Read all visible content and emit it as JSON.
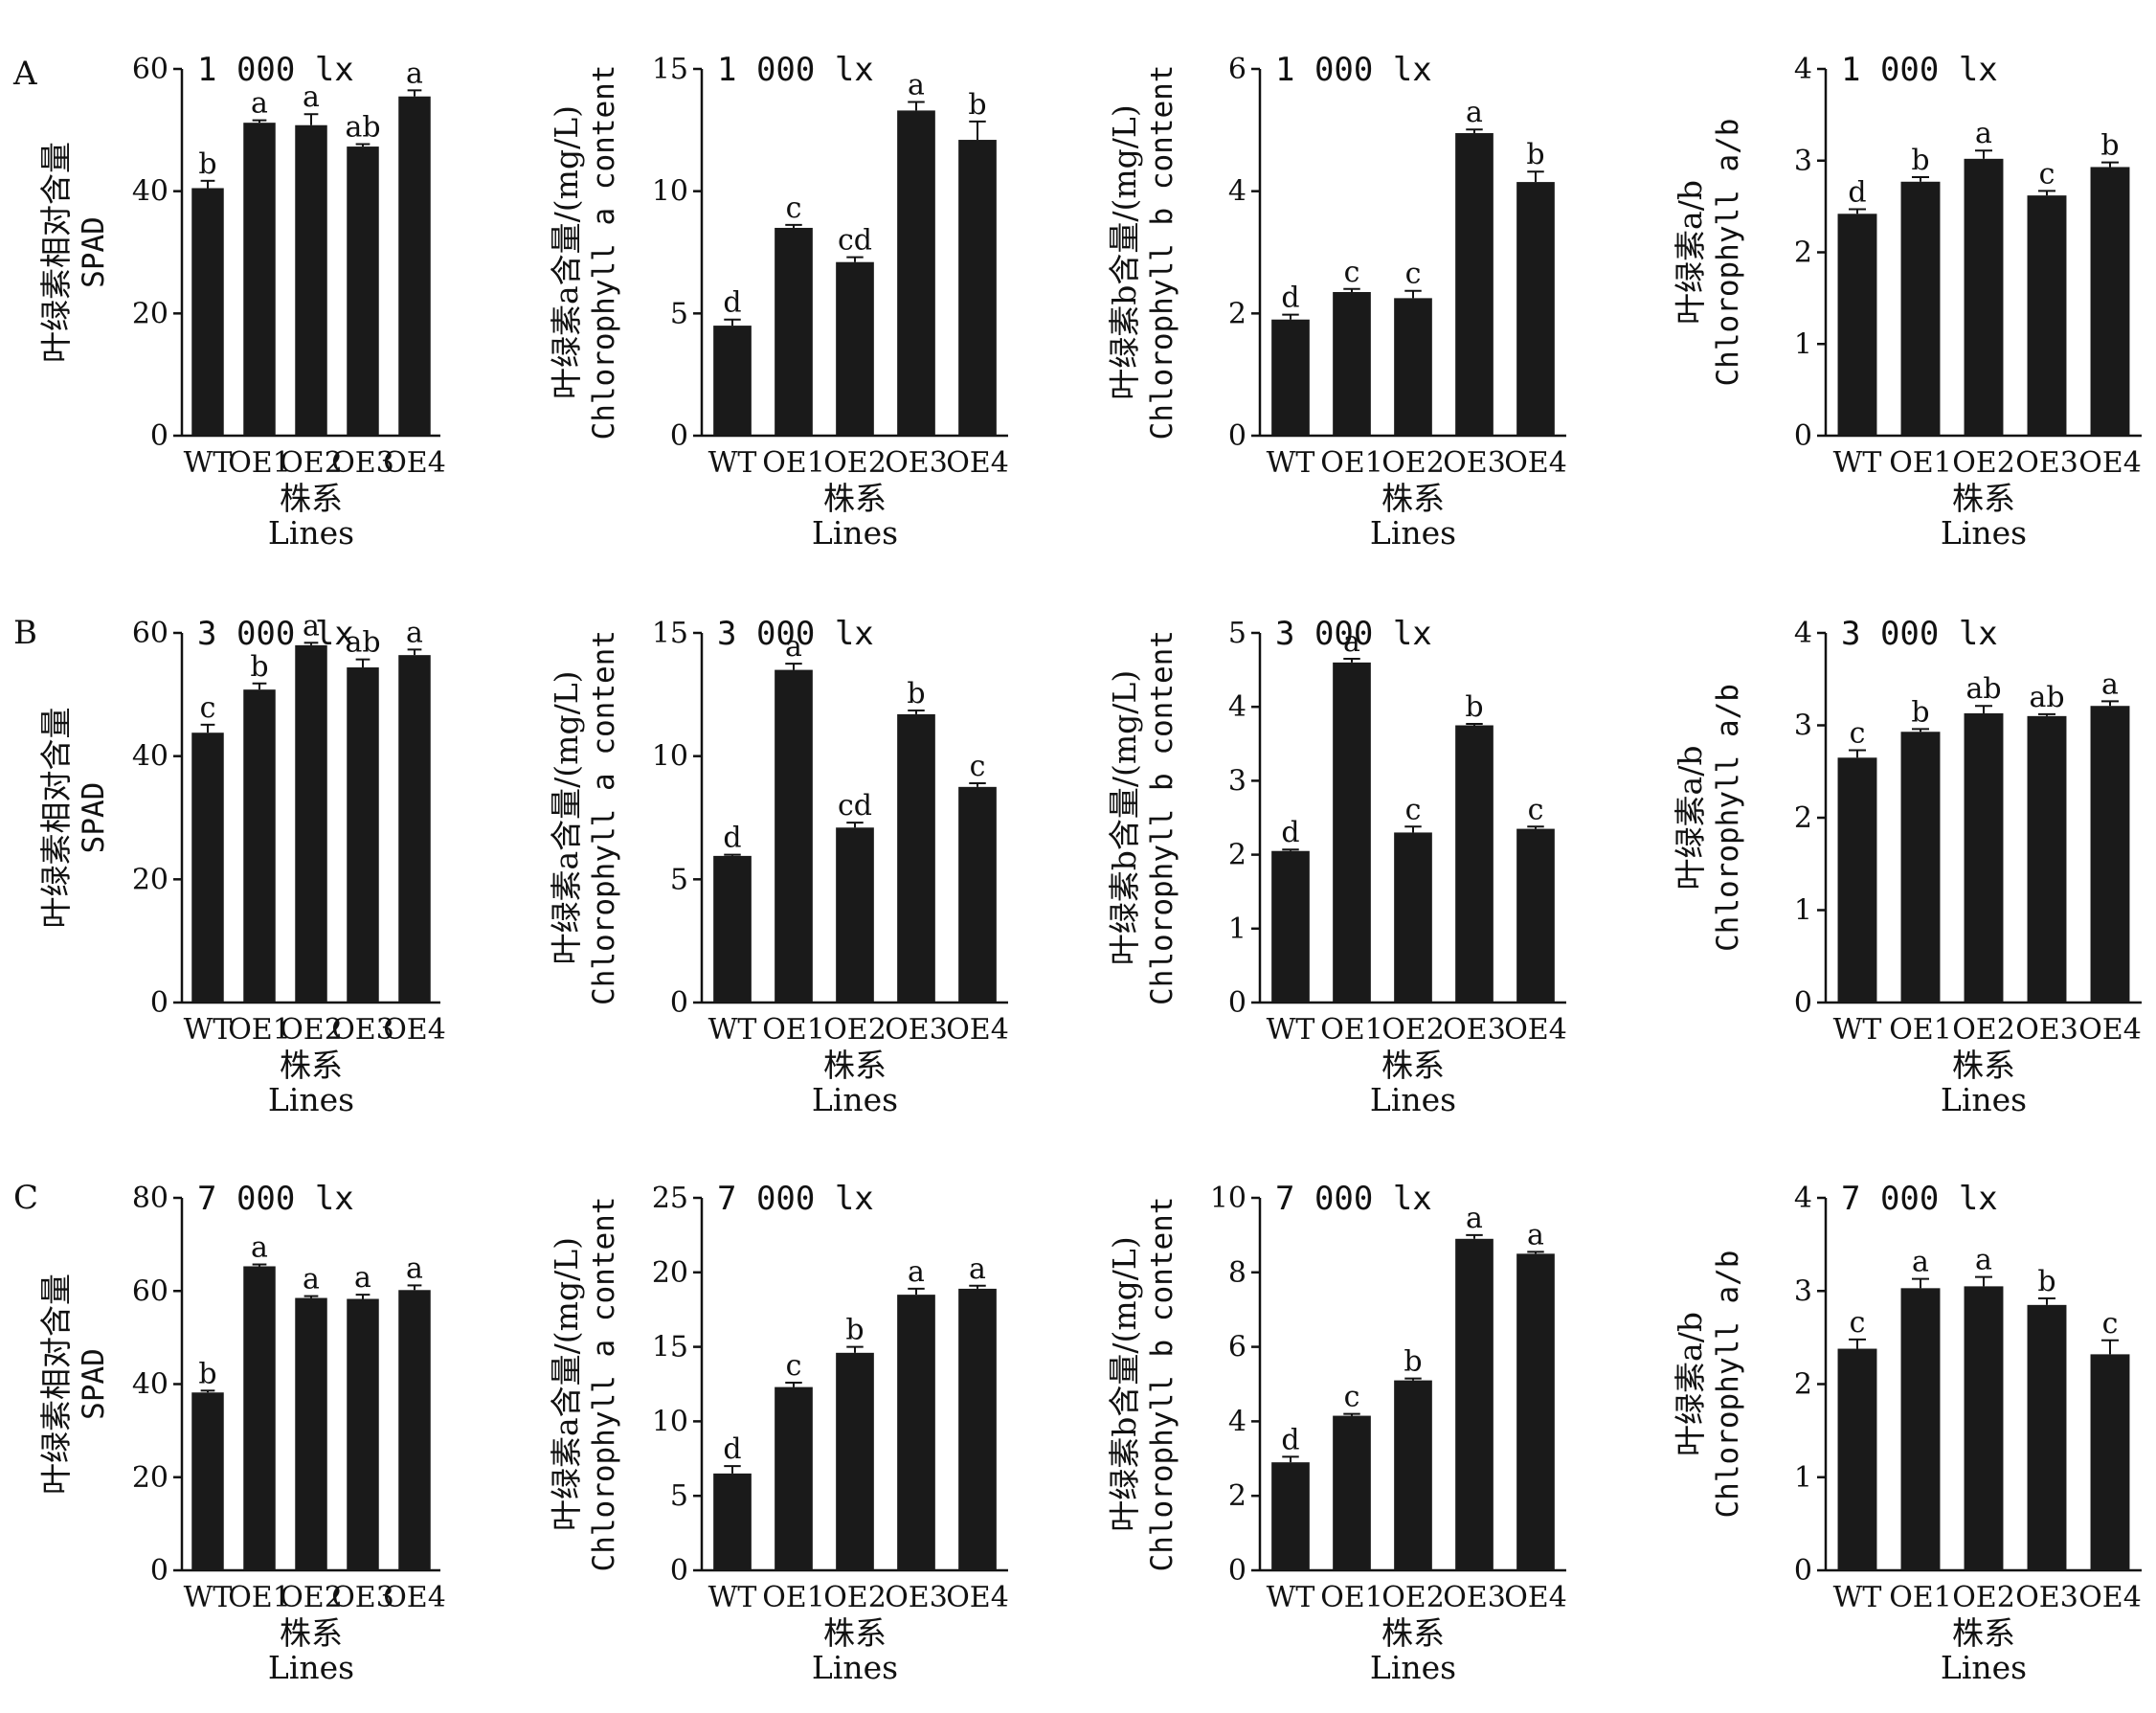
{
  "figure": {
    "row_labels": [
      "A",
      "B",
      "C"
    ],
    "xlabel_cn": "株系",
    "xlabel_en": "Lines",
    "bar_color": "#1a1a1a"
  },
  "chart_data": [
    {
      "type": "bar",
      "row": "A",
      "panel": 1,
      "condition": "1 000 lx",
      "categories": [
        "WT",
        "OE1",
        "OE2",
        "OE3",
        "OE4"
      ],
      "values": [
        40.5,
        51.2,
        50.8,
        47.3,
        55.5
      ],
      "errors": [
        1.2,
        0.4,
        1.8,
        0.4,
        1.0
      ],
      "letters": [
        "b",
        "a",
        "a",
        "ab",
        "a"
      ],
      "ylim": [
        0,
        60
      ],
      "yticks": [
        0,
        20,
        40,
        60
      ],
      "ylabel_cn": "叶绿素相对含量",
      "ylabel_en": "SPAD",
      "xlabel_cn": "株系",
      "xlabel_en": "Lines"
    },
    {
      "type": "bar",
      "row": "A",
      "panel": 2,
      "condition": "1 000 lx",
      "categories": [
        "WT",
        "OE1",
        "OE2",
        "OE3",
        "OE4"
      ],
      "values": [
        4.5,
        8.5,
        7.1,
        13.3,
        12.1
      ],
      "errors": [
        0.25,
        0.12,
        0.2,
        0.35,
        0.75
      ],
      "letters": [
        "d",
        "c",
        "cd",
        "a",
        "b"
      ],
      "ylim": [
        0,
        15
      ],
      "yticks": [
        0,
        5,
        10,
        15
      ],
      "ylabel_cn": "叶绿素a含量/(mg/L)",
      "ylabel_en": "Chlorophyll a content",
      "xlabel_cn": "株系",
      "xlabel_en": "Lines"
    },
    {
      "type": "bar",
      "row": "A",
      "panel": 3,
      "condition": "1 000 lx",
      "categories": [
        "WT",
        "OE1",
        "OE2",
        "OE3",
        "OE4"
      ],
      "values": [
        1.9,
        2.35,
        2.25,
        4.95,
        4.15
      ],
      "errors": [
        0.08,
        0.05,
        0.12,
        0.06,
        0.17
      ],
      "letters": [
        "d",
        "c",
        "c",
        "a",
        "b"
      ],
      "ylim": [
        0,
        6
      ],
      "yticks": [
        0,
        2,
        4,
        6
      ],
      "ylabel_cn": "叶绿素b含量/(mg/L)",
      "ylabel_en": "Chlorophyll b content",
      "xlabel_cn": "株系",
      "xlabel_en": "Lines"
    },
    {
      "type": "bar",
      "row": "A",
      "panel": 4,
      "condition": "1 000 lx",
      "categories": [
        "WT",
        "OE1",
        "OE2",
        "OE3",
        "OE4"
      ],
      "values": [
        2.42,
        2.77,
        3.02,
        2.62,
        2.93
      ],
      "errors": [
        0.05,
        0.05,
        0.09,
        0.05,
        0.05
      ],
      "letters": [
        "d",
        "b",
        "a",
        "c",
        "b"
      ],
      "ylim": [
        0,
        4
      ],
      "yticks": [
        0,
        1,
        2,
        3,
        4
      ],
      "ylabel_cn": "叶绿素a/b",
      "ylabel_en": "Chlorophyll a/b",
      "xlabel_cn": "株系",
      "xlabel_en": "Lines"
    },
    {
      "type": "bar",
      "row": "B",
      "panel": 1,
      "condition": "3 000 lx",
      "categories": [
        "WT",
        "OE1",
        "OE2",
        "OE3",
        "OE4"
      ],
      "values": [
        43.8,
        50.8,
        58.0,
        54.4,
        56.4
      ],
      "errors": [
        1.3,
        1.0,
        0.4,
        1.3,
        0.9
      ],
      "letters": [
        "c",
        "b",
        "a",
        "ab",
        "a"
      ],
      "ylim": [
        0,
        60
      ],
      "yticks": [
        0,
        20,
        40,
        60
      ],
      "ylabel_cn": "叶绿素相对含量",
      "ylabel_en": "SPAD",
      "xlabel_cn": "株系",
      "xlabel_en": "Lines"
    },
    {
      "type": "bar",
      "row": "B",
      "panel": 2,
      "condition": "3 000 lx",
      "categories": [
        "WT",
        "OE1",
        "OE2",
        "OE3",
        "OE4"
      ],
      "values": [
        5.95,
        13.5,
        7.1,
        11.7,
        8.75
      ],
      "errors": [
        0.05,
        0.25,
        0.2,
        0.15,
        0.15
      ],
      "letters": [
        "d",
        "a",
        "cd",
        "b",
        "c"
      ],
      "ylim": [
        0,
        15
      ],
      "yticks": [
        0,
        5,
        10,
        15
      ],
      "ylabel_cn": "叶绿素a含量/(mg/L)",
      "ylabel_en": "Chlorophyll a content",
      "xlabel_cn": "株系",
      "xlabel_en": "Lines"
    },
    {
      "type": "bar",
      "row": "B",
      "panel": 3,
      "condition": "3 000 lx",
      "categories": [
        "WT",
        "OE1",
        "OE2",
        "OE3",
        "OE4"
      ],
      "values": [
        2.05,
        4.6,
        2.3,
        3.75,
        2.35
      ],
      "errors": [
        0.02,
        0.05,
        0.08,
        0.02,
        0.03
      ],
      "letters": [
        "d",
        "a",
        "c",
        "b",
        "c"
      ],
      "ylim": [
        0,
        5
      ],
      "yticks": [
        0,
        1,
        2,
        3,
        4,
        5
      ],
      "ylabel_cn": "叶绿素b含量/(mg/L)",
      "ylabel_en": "Chlorophyll b content",
      "xlabel_cn": "株系",
      "xlabel_en": "Lines"
    },
    {
      "type": "bar",
      "row": "B",
      "panel": 4,
      "condition": "3 000 lx",
      "categories": [
        "WT",
        "OE1",
        "OE2",
        "OE3",
        "OE4"
      ],
      "values": [
        2.65,
        2.93,
        3.13,
        3.1,
        3.21
      ],
      "errors": [
        0.08,
        0.03,
        0.08,
        0.02,
        0.05
      ],
      "letters": [
        "c",
        "b",
        "ab",
        "ab",
        "a"
      ],
      "ylim": [
        0,
        4
      ],
      "yticks": [
        0,
        1,
        2,
        3,
        4
      ],
      "ylabel_cn": "叶绿素a/b",
      "ylabel_en": "Chlorophyll a/b",
      "xlabel_cn": "株系",
      "xlabel_en": "Lines"
    },
    {
      "type": "bar",
      "row": "C",
      "panel": 1,
      "condition": "7 000 lx",
      "categories": [
        "WT",
        "OE1",
        "OE2",
        "OE3",
        "OE4"
      ],
      "values": [
        38.2,
        65.3,
        58.5,
        58.3,
        60.2
      ],
      "errors": [
        0.4,
        0.4,
        0.4,
        0.9,
        1.0
      ],
      "letters": [
        "b",
        "a",
        "a",
        "a",
        "a"
      ],
      "ylim": [
        0,
        80
      ],
      "yticks": [
        0,
        20,
        40,
        60,
        80
      ],
      "ylabel_cn": "叶绿素相对含量",
      "ylabel_en": "SPAD",
      "xlabel_cn": "株系",
      "xlabel_en": "Lines"
    },
    {
      "type": "bar",
      "row": "C",
      "panel": 2,
      "condition": "7 000 lx",
      "categories": [
        "WT",
        "OE1",
        "OE2",
        "OE3",
        "OE4"
      ],
      "values": [
        6.5,
        12.3,
        14.6,
        18.5,
        18.9
      ],
      "errors": [
        0.5,
        0.3,
        0.4,
        0.4,
        0.2
      ],
      "letters": [
        "d",
        "c",
        "b",
        "a",
        "a"
      ],
      "ylim": [
        0,
        25
      ],
      "yticks": [
        0,
        5,
        10,
        15,
        20,
        25
      ],
      "ylabel_cn": "叶绿素a含量/(mg/L)",
      "ylabel_en": "Chlorophyll a content",
      "xlabel_cn": "株系",
      "xlabel_en": "Lines"
    },
    {
      "type": "bar",
      "row": "C",
      "panel": 3,
      "condition": "7 000 lx",
      "categories": [
        "WT",
        "OE1",
        "OE2",
        "OE3",
        "OE4"
      ],
      "values": [
        2.9,
        4.15,
        5.1,
        8.9,
        8.5
      ],
      "errors": [
        0.15,
        0.05,
        0.05,
        0.1,
        0.05
      ],
      "letters": [
        "d",
        "c",
        "b",
        "a",
        "a"
      ],
      "ylim": [
        0,
        10
      ],
      "yticks": [
        0,
        2,
        4,
        6,
        8,
        10
      ],
      "ylabel_cn": "叶绿素b含量/(mg/L)",
      "ylabel_en": "Chlorophyll b content",
      "xlabel_cn": "株系",
      "xlabel_en": "Lines"
    },
    {
      "type": "bar",
      "row": "C",
      "panel": 4,
      "condition": "7 000 lx",
      "categories": [
        "WT",
        "OE1",
        "OE2",
        "OE3",
        "OE4"
      ],
      "values": [
        2.38,
        3.03,
        3.05,
        2.85,
        2.32
      ],
      "errors": [
        0.1,
        0.1,
        0.1,
        0.07,
        0.15
      ],
      "letters": [
        "c",
        "a",
        "a",
        "b",
        "c"
      ],
      "ylim": [
        0,
        4
      ],
      "yticks": [
        0,
        1,
        2,
        3,
        4
      ],
      "ylabel_cn": "叶绿素a/b",
      "ylabel_en": "Chlorophyll a/b",
      "xlabel_cn": "株系",
      "xlabel_en": "Lines"
    }
  ]
}
